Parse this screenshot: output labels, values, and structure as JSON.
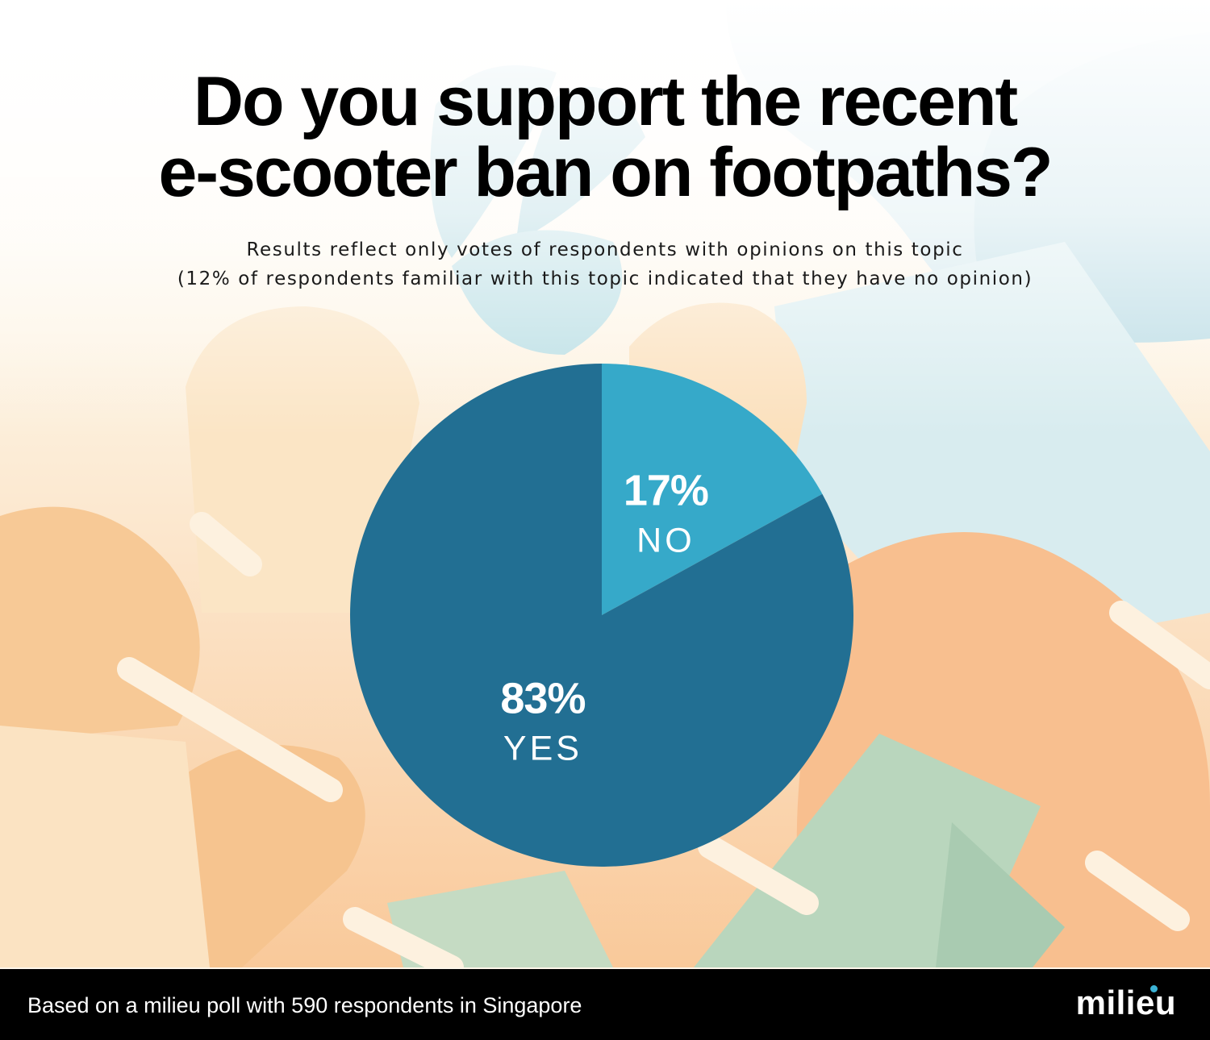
{
  "title_lines": [
    "Do you support the recent",
    "e-scooter ban on footpaths?"
  ],
  "subtitle_lines": [
    "Results reflect only votes of respondents with opinions on this topic",
    "(12% of respondents familiar with this topic indicated that they have no opinion)"
  ],
  "chart_data": {
    "type": "pie",
    "slices": [
      {
        "label": "NO",
        "value": 17,
        "value_text": "17%",
        "color": "#36a9c9"
      },
      {
        "label": "YES",
        "value": 83,
        "value_text": "83%",
        "color": "#226f93"
      }
    ],
    "start": "12 o'clock",
    "direction": "clockwise"
  },
  "footer": {
    "note": "Based on a milieu poll with 590 respondents in Singapore",
    "logo": "milieu"
  },
  "colors": {
    "footer_bg": "#000000",
    "title": "#000000",
    "background": "#fdf6ea",
    "logo_dot": "#3bb3d6"
  }
}
